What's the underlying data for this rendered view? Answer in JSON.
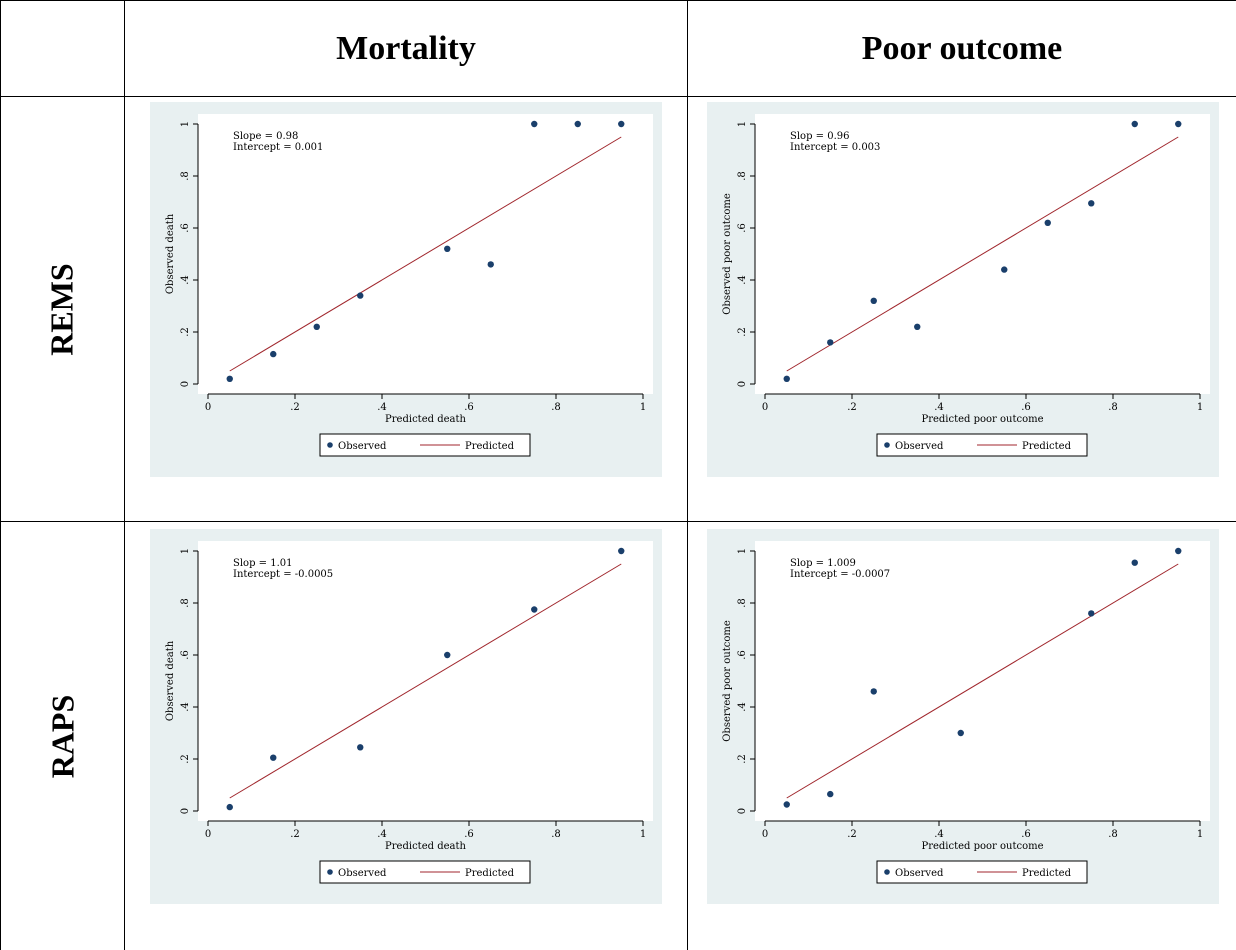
{
  "table": {
    "col_headers": [
      "Mortality",
      "Poor outcome"
    ],
    "row_headers": [
      "REMS",
      "RAPS"
    ]
  },
  "style": {
    "point_color": "#1a3f6b",
    "line_color": "#a0262c",
    "panel_bg": "#e8f0f1",
    "plot_bg": "#ffffff"
  },
  "chart_data": [
    {
      "type": "scatter",
      "xlabel": "Predicted death",
      "ylabel": "Observed death",
      "xlim": [
        0,
        1
      ],
      "ylim": [
        0,
        1
      ],
      "xticks": [
        "0",
        ".2",
        ".4",
        ".6",
        ".8",
        "1"
      ],
      "yticks": [
        "0",
        ".2",
        ".4",
        ".6",
        ".8",
        "1"
      ],
      "annotation": [
        "Slope = 0.98",
        "Intercept = 0.001"
      ],
      "legend": [
        "Observed",
        "Predicted"
      ],
      "legend_position": "bottom",
      "series": [
        {
          "name": "Observed",
          "kind": "points",
          "x": [
            0.05,
            0.15,
            0.25,
            0.35,
            0.55,
            0.65,
            0.75,
            0.85,
            0.95
          ],
          "y": [
            0.02,
            0.115,
            0.22,
            0.34,
            0.52,
            0.46,
            1.0,
            1.0,
            1.0
          ]
        },
        {
          "name": "Predicted",
          "kind": "line",
          "x": [
            0.05,
            0.95
          ],
          "y": [
            0.05,
            0.95
          ]
        }
      ]
    },
    {
      "type": "scatter",
      "xlabel": "Predicted poor outcome",
      "ylabel": "Observed poor outcome",
      "xlim": [
        0,
        1
      ],
      "ylim": [
        0,
        1
      ],
      "xticks": [
        "0",
        ".2",
        ".4",
        ".6",
        ".8",
        "1"
      ],
      "yticks": [
        "0",
        ".2",
        ".4",
        ".6",
        ".8",
        "1"
      ],
      "annotation": [
        "Slop = 0.96",
        "Intercept = 0.003"
      ],
      "legend": [
        "Observed",
        "Predicted"
      ],
      "legend_position": "bottom",
      "series": [
        {
          "name": "Observed",
          "kind": "points",
          "x": [
            0.05,
            0.15,
            0.25,
            0.35,
            0.55,
            0.65,
            0.75,
            0.85,
            0.95
          ],
          "y": [
            0.02,
            0.16,
            0.32,
            0.22,
            0.44,
            0.62,
            0.695,
            1.0,
            1.0
          ]
        },
        {
          "name": "Predicted",
          "kind": "line",
          "x": [
            0.05,
            0.95
          ],
          "y": [
            0.05,
            0.95
          ]
        }
      ]
    },
    {
      "type": "scatter",
      "xlabel": "Predicted death",
      "ylabel": "Observed death",
      "xlim": [
        0,
        1
      ],
      "ylim": [
        0,
        1
      ],
      "xticks": [
        "0",
        ".2",
        ".4",
        ".6",
        ".8",
        "1"
      ],
      "yticks": [
        "0",
        ".2",
        ".4",
        ".6",
        ".8",
        "1"
      ],
      "annotation": [
        "Slop = 1.01",
        "Intercept = -0.0005"
      ],
      "legend": [
        "Observed",
        "Predicted"
      ],
      "legend_position": "bottom",
      "series": [
        {
          "name": "Observed",
          "kind": "points",
          "x": [
            0.05,
            0.15,
            0.35,
            0.55,
            0.75,
            0.95
          ],
          "y": [
            0.015,
            0.205,
            0.245,
            0.6,
            0.775,
            1.0
          ]
        },
        {
          "name": "Predicted",
          "kind": "line",
          "x": [
            0.05,
            0.95
          ],
          "y": [
            0.05,
            0.95
          ]
        }
      ]
    },
    {
      "type": "scatter",
      "xlabel": "Predicted poor outcome",
      "ylabel": "Observed poor outcome",
      "xlim": [
        0,
        1
      ],
      "ylim": [
        0,
        1
      ],
      "xticks": [
        "0",
        ".2",
        ".4",
        ".6",
        ".8",
        "1"
      ],
      "yticks": [
        "0",
        ".2",
        ".4",
        ".6",
        ".8",
        "1"
      ],
      "annotation": [
        "Slop = 1.009",
        "Intercept = -0.0007"
      ],
      "legend": [
        "Observed",
        "Predicted"
      ],
      "legend_position": "bottom",
      "series": [
        {
          "name": "Observed",
          "kind": "points",
          "x": [
            0.05,
            0.15,
            0.25,
            0.45,
            0.75,
            0.85,
            0.95
          ],
          "y": [
            0.025,
            0.065,
            0.46,
            0.3,
            0.76,
            0.955,
            1.0
          ]
        },
        {
          "name": "Predicted",
          "kind": "line",
          "x": [
            0.05,
            0.95
          ],
          "y": [
            0.05,
            0.95
          ]
        }
      ]
    }
  ]
}
